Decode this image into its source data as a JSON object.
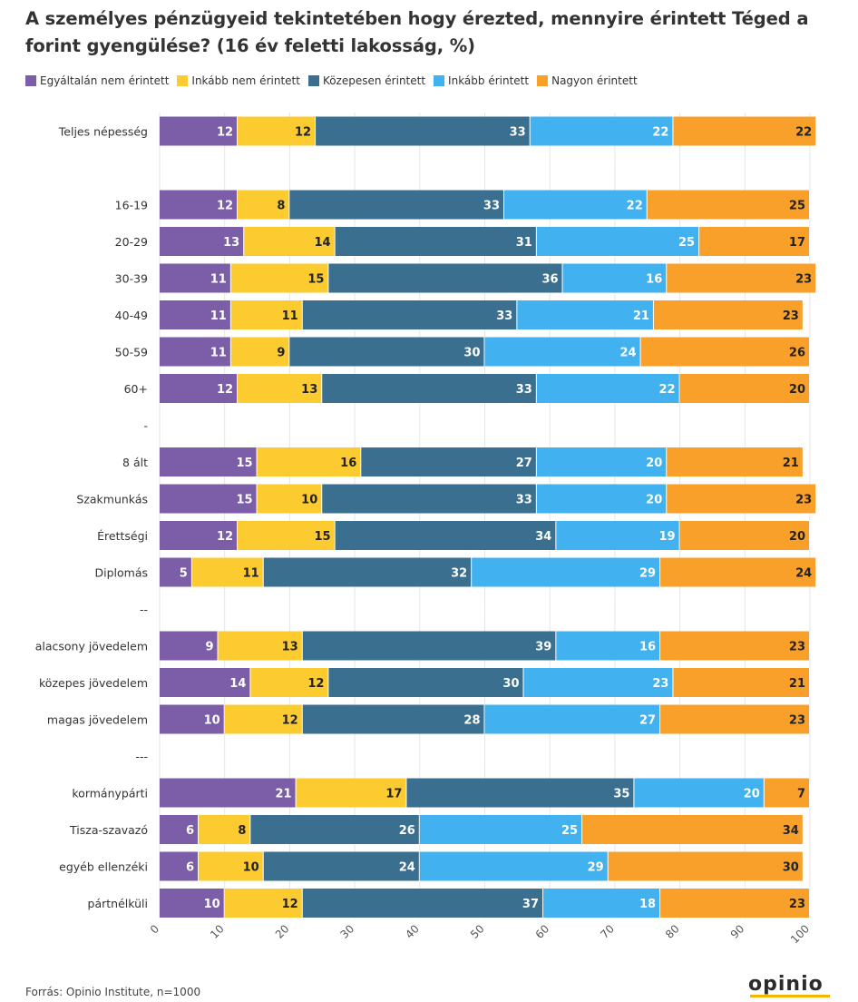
{
  "title": "A személyes pénzügyeid tekintetében hogy érezted, mennyire érintett Téged a forint gyengülése? (16 év feletti lakosság, %)",
  "source": "Forrás: Opinio Institute, n=1000",
  "logo_text": "opinio",
  "colors": {
    "text_on_light": "#222222",
    "text_on_dark": "#ffffff",
    "grid": "#e6e6e6"
  },
  "chart_data": {
    "type": "bar",
    "orientation": "horizontal",
    "stacked": true,
    "xlim": [
      0,
      100
    ],
    "xticks": [
      0,
      10,
      20,
      30,
      40,
      50,
      60,
      70,
      80,
      90,
      100
    ],
    "grid": true,
    "legend_position": "top-left",
    "series": [
      {
        "name": "Egyáltalán nem érintett",
        "color": "#7b5ea7",
        "label_color": "#ffffff"
      },
      {
        "name": "Inkább nem érintett",
        "color": "#fccb2f",
        "label_color": "#222222"
      },
      {
        "name": "Közepesen érintett",
        "color": "#3a6f8f",
        "label_color": "#ffffff"
      },
      {
        "name": "Inkább érintett",
        "color": "#41b1ef",
        "label_color": "#ffffff"
      },
      {
        "name": "Nagyon érintett",
        "color": "#f9a02a",
        "label_color": "#222222"
      }
    ],
    "rows": [
      {
        "label": "Teljes népesség",
        "values": [
          12,
          12,
          33,
          22,
          22
        ]
      },
      {
        "label": "",
        "separator": true
      },
      {
        "label": "16-19",
        "values": [
          12,
          8,
          33,
          22,
          25
        ]
      },
      {
        "label": "20-29",
        "values": [
          13,
          14,
          31,
          25,
          17
        ]
      },
      {
        "label": "30-39",
        "values": [
          11,
          15,
          36,
          16,
          23
        ]
      },
      {
        "label": "40-49",
        "values": [
          11,
          11,
          33,
          21,
          23
        ]
      },
      {
        "label": "50-59",
        "values": [
          11,
          9,
          30,
          24,
          26
        ]
      },
      {
        "label": "60+",
        "values": [
          12,
          13,
          33,
          22,
          20
        ]
      },
      {
        "label": "-",
        "separator": true
      },
      {
        "label": "8 ált",
        "values": [
          15,
          16,
          27,
          20,
          21
        ]
      },
      {
        "label": "Szakmunkás",
        "values": [
          15,
          10,
          33,
          20,
          23
        ]
      },
      {
        "label": "Érettségi",
        "values": [
          12,
          15,
          34,
          19,
          20
        ]
      },
      {
        "label": "Diplomás",
        "values": [
          5,
          11,
          32,
          29,
          24
        ]
      },
      {
        "label": "--",
        "separator": true
      },
      {
        "label": "alacsony jövedelem",
        "values": [
          9,
          13,
          39,
          16,
          23
        ]
      },
      {
        "label": "közepes jövedelem",
        "values": [
          14,
          12,
          30,
          23,
          21
        ]
      },
      {
        "label": "magas jövedelem",
        "values": [
          10,
          12,
          28,
          27,
          23
        ]
      },
      {
        "label": "---",
        "separator": true
      },
      {
        "label": "kormánypárti",
        "values": [
          21,
          17,
          35,
          20,
          7
        ]
      },
      {
        "label": "Tisza-szavazó",
        "values": [
          6,
          8,
          26,
          25,
          34
        ]
      },
      {
        "label": "egyéb ellenzéki",
        "values": [
          6,
          10,
          24,
          29,
          30
        ]
      },
      {
        "label": "pártnélküli",
        "values": [
          10,
          12,
          37,
          18,
          23
        ]
      }
    ]
  }
}
